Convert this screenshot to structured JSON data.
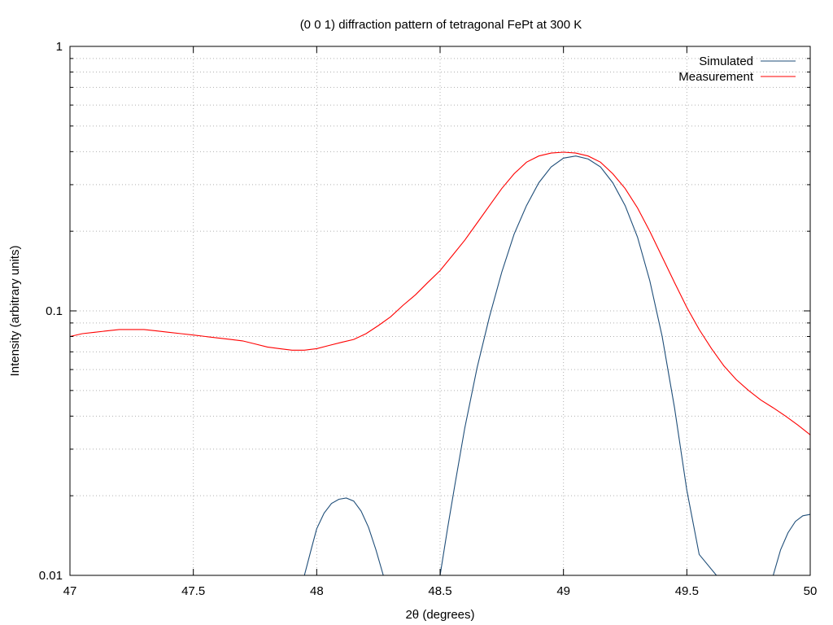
{
  "chart_data": {
    "type": "line",
    "title": "(0 0 1) diffraction pattern of tetragonal FePt at 300 K",
    "xlabel": "2θ (degrees)",
    "ylabel": "Intensity (arbitrary units)",
    "xlim": [
      47,
      50
    ],
    "ylim": [
      0.01,
      1
    ],
    "yscale": "log",
    "grid": true,
    "legend_position": "top-right",
    "x_ticks": [
      {
        "value": 47,
        "label": "47"
      },
      {
        "value": 47.5,
        "label": "47.5"
      },
      {
        "value": 48,
        "label": "48"
      },
      {
        "value": 48.5,
        "label": "48.5"
      },
      {
        "value": 49,
        "label": "49"
      },
      {
        "value": 49.5,
        "label": "49.5"
      },
      {
        "value": 50,
        "label": "50"
      }
    ],
    "y_ticks": [
      {
        "value": 0.01,
        "label": "0.01"
      },
      {
        "value": 0.1,
        "label": "0.1"
      },
      {
        "value": 1,
        "label": "1"
      }
    ],
    "series": [
      {
        "name": "Simulated",
        "color": "#1f4e79",
        "segments": [
          {
            "x": [
              47.95,
              47.98,
              48.0,
              48.03,
              48.06,
              48.09,
              48.12,
              48.15,
              48.18,
              48.21,
              48.24,
              48.27
            ],
            "y": [
              0.01,
              0.0128,
              0.015,
              0.0172,
              0.0187,
              0.0194,
              0.0196,
              0.0191,
              0.0175,
              0.0152,
              0.0125,
              0.01
            ]
          },
          {
            "x": [
              48.5,
              48.53,
              48.56,
              48.6,
              48.65,
              48.7,
              48.75,
              48.8,
              48.85,
              48.9,
              48.95,
              49.0,
              49.05,
              49.1,
              49.15,
              49.2,
              49.25,
              49.3,
              49.35,
              49.4,
              49.45,
              49.5,
              49.55,
              49.62
            ],
            "y": [
              0.01,
              0.015,
              0.022,
              0.036,
              0.061,
              0.095,
              0.14,
              0.195,
              0.25,
              0.305,
              0.35,
              0.378,
              0.385,
              0.375,
              0.35,
              0.305,
              0.25,
              0.19,
              0.13,
              0.08,
              0.043,
              0.021,
              0.012,
              0.01
            ]
          },
          {
            "x": [
              49.85,
              49.88,
              49.91,
              49.94,
              49.97,
              50.0
            ],
            "y": [
              0.01,
              0.0125,
              0.0145,
              0.016,
              0.0168,
              0.017
            ]
          }
        ]
      },
      {
        "name": "Measurement",
        "color": "#ff0000",
        "x": [
          47.0,
          47.05,
          47.1,
          47.15,
          47.2,
          47.25,
          47.3,
          47.35,
          47.4,
          47.45,
          47.5,
          47.55,
          47.6,
          47.65,
          47.7,
          47.75,
          47.8,
          47.85,
          47.9,
          47.95,
          48.0,
          48.05,
          48.1,
          48.15,
          48.2,
          48.25,
          48.3,
          48.35,
          48.4,
          48.45,
          48.5,
          48.55,
          48.6,
          48.65,
          48.7,
          48.75,
          48.8,
          48.85,
          48.9,
          48.95,
          49.0,
          49.05,
          49.1,
          49.15,
          49.2,
          49.25,
          49.3,
          49.35,
          49.4,
          49.45,
          49.5,
          49.55,
          49.6,
          49.65,
          49.7,
          49.75,
          49.8,
          49.85,
          49.9,
          49.95,
          50.0
        ],
        "y": [
          0.08,
          0.082,
          0.083,
          0.084,
          0.085,
          0.085,
          0.085,
          0.084,
          0.083,
          0.082,
          0.081,
          0.08,
          0.079,
          0.078,
          0.077,
          0.075,
          0.073,
          0.072,
          0.071,
          0.071,
          0.072,
          0.074,
          0.076,
          0.078,
          0.082,
          0.088,
          0.095,
          0.105,
          0.115,
          0.128,
          0.142,
          0.162,
          0.185,
          0.215,
          0.25,
          0.29,
          0.33,
          0.365,
          0.385,
          0.395,
          0.398,
          0.395,
          0.385,
          0.365,
          0.33,
          0.29,
          0.245,
          0.2,
          0.16,
          0.128,
          0.103,
          0.085,
          0.072,
          0.062,
          0.055,
          0.05,
          0.046,
          0.043,
          0.04,
          0.037,
          0.034
        ]
      }
    ]
  }
}
